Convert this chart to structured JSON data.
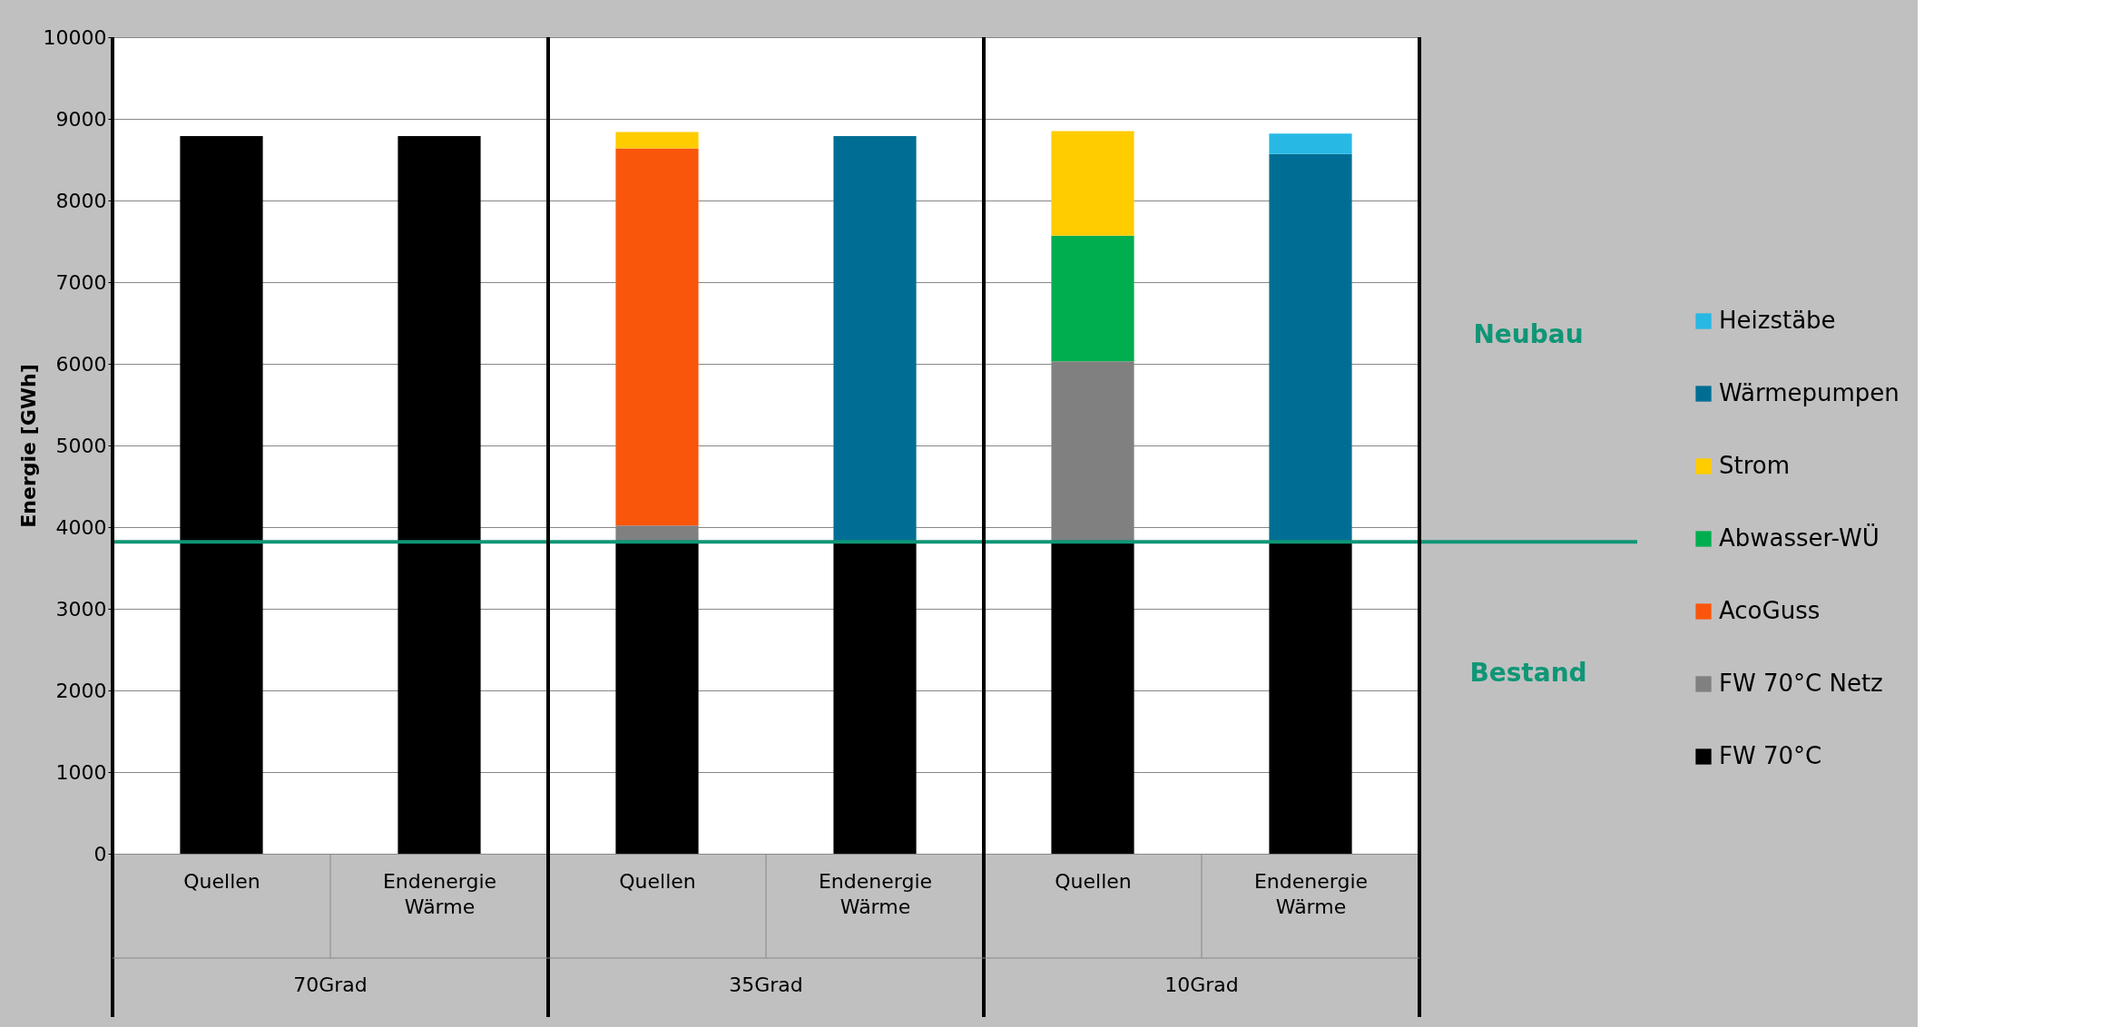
{
  "chart_data": {
    "type": "bar",
    "stacked": true,
    "ylabel": "Energie [GWh]",
    "categories": [
      "Quellen",
      "Endenergie Wärme",
      "Quellen",
      "Endenergie Wärme",
      "Quellen",
      "Endenergie Wärme"
    ],
    "series": [
      {
        "name": "FW 70°C",
        "color": "#000000",
        "values": [
          8790,
          8790,
          3820,
          3820,
          3820,
          3820
        ]
      },
      {
        "name": "FW 70°C Netz",
        "color": "#808080",
        "values": [
          null,
          null,
          200,
          null,
          2210,
          null
        ]
      },
      {
        "name": "AcoGuss",
        "color": "#f9560c",
        "values": [
          null,
          null,
          4620,
          null,
          null,
          null
        ]
      },
      {
        "name": "Abwasser-WÜ",
        "color": "#00ae4f",
        "values": [
          null,
          null,
          null,
          null,
          1540,
          null
        ]
      },
      {
        "name": "Strom",
        "color": "#ffcc00",
        "values": [
          null,
          null,
          200,
          null,
          1280,
          null
        ]
      },
      {
        "name": "Wärmepumpen",
        "color": "#006e94",
        "values": [
          null,
          null,
          null,
          4970,
          null,
          4750
        ]
      },
      {
        "name": "Heizstäbe",
        "color": "#27b8e4",
        "values": [
          null,
          null,
          null,
          null,
          null,
          250
        ]
      }
    ],
    "ylim": [
      0,
      10000
    ],
    "yticks": [
      0,
      1000,
      2000,
      3000,
      4000,
      5000,
      6000,
      7000,
      8000,
      9000,
      10000
    ],
    "grid": "y",
    "legend": "right",
    "ref_lines": [
      {
        "axis": "y",
        "value": 3820,
        "color": "#0f9676"
      }
    ],
    "annotations": [
      "Neubau",
      "Bestand",
      "70Grad",
      "35Grad",
      "10Grad"
    ]
  }
}
